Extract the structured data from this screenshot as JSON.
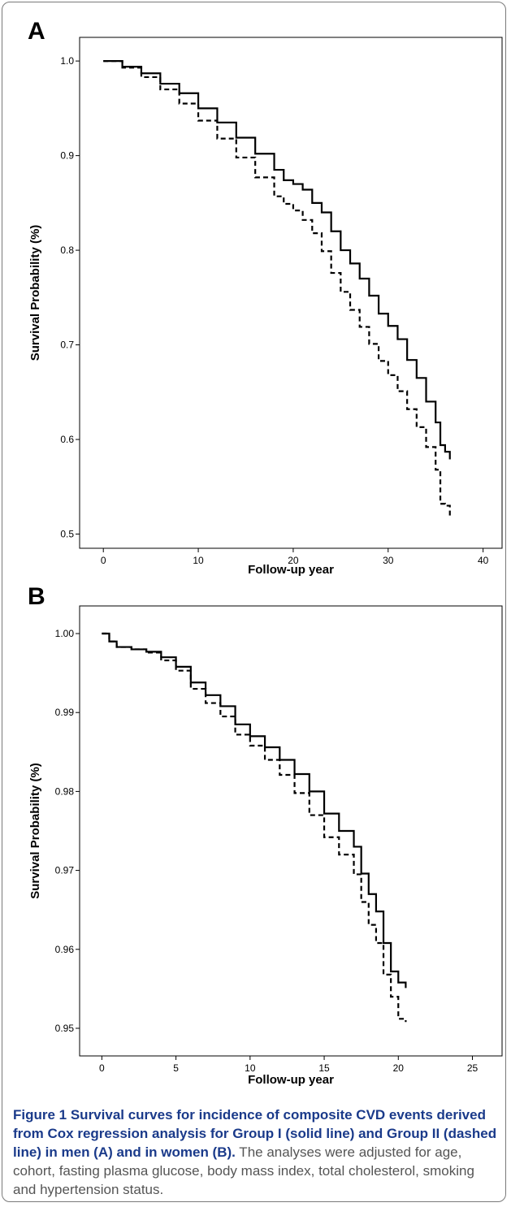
{
  "panels": [
    {
      "letter": "A",
      "chart_data": {
        "type": "line",
        "title": "",
        "xlabel": "Follow-up year",
        "ylabel": "Survival Probability (%)",
        "xlim": [
          -2.5,
          42
        ],
        "ylim": [
          0.485,
          1.025
        ],
        "xticks": [
          0,
          10,
          20,
          30,
          40
        ],
        "yticks": [
          0.5,
          0.6,
          0.7,
          0.8,
          0.9,
          1.0
        ],
        "ytick_labels": [
          "0.5",
          "0.6",
          "0.7",
          "0.8",
          "0.9",
          "1.0"
        ],
        "grid": false,
        "legend": "none",
        "series": [
          {
            "style": "solid",
            "x": [
              0,
              2,
              4,
              6,
              8,
              10,
              12,
              14,
              16,
              18,
              19,
              20,
              21,
              22,
              23,
              24,
              25,
              26,
              27,
              28,
              29,
              30,
              31,
              32,
              33,
              34,
              35,
              35.5,
              36,
              36.5
            ],
            "y": [
              1.0,
              0.994,
              0.987,
              0.976,
              0.966,
              0.95,
              0.935,
              0.919,
              0.902,
              0.885,
              0.874,
              0.87,
              0.864,
              0.85,
              0.84,
              0.82,
              0.8,
              0.786,
              0.77,
              0.752,
              0.733,
              0.72,
              0.706,
              0.684,
              0.665,
              0.64,
              0.618,
              0.594,
              0.587,
              0.579
            ]
          },
          {
            "style": "dashed",
            "x": [
              0,
              2,
              4,
              6,
              8,
              10,
              12,
              14,
              16,
              18,
              19,
              20,
              21,
              22,
              23,
              24,
              25,
              26,
              27,
              28,
              29,
              30,
              31,
              32,
              33,
              34,
              35,
              35.5,
              36,
              36.5
            ],
            "y": [
              1.0,
              0.993,
              0.983,
              0.97,
              0.955,
              0.937,
              0.918,
              0.898,
              0.877,
              0.857,
              0.849,
              0.842,
              0.832,
              0.818,
              0.799,
              0.776,
              0.756,
              0.737,
              0.719,
              0.701,
              0.683,
              0.668,
              0.651,
              0.632,
              0.613,
              0.592,
              0.568,
              0.532,
              0.53,
              0.519
            ]
          }
        ]
      }
    },
    {
      "letter": "B",
      "chart_data": {
        "type": "line",
        "title": "",
        "xlabel": "Follow-up year",
        "ylabel": "Survival Probability (%)",
        "xlim": [
          -1.5,
          27
        ],
        "ylim": [
          0.9465,
          1.0035
        ],
        "xticks": [
          0,
          5,
          10,
          15,
          20,
          25
        ],
        "yticks": [
          0.95,
          0.96,
          0.97,
          0.98,
          0.99,
          1.0
        ],
        "ytick_labels": [
          "0.95",
          "0.96",
          "0.97",
          "0.98",
          "0.99",
          "1.00"
        ],
        "grid": false,
        "legend": "none",
        "series": [
          {
            "style": "solid",
            "x": [
              0,
              0.5,
              1,
              2,
              3,
              4,
              5,
              6,
              7,
              8,
              9,
              10,
              11,
              12,
              13,
              14,
              15,
              16,
              17,
              17.5,
              18,
              18.5,
              19,
              19.5,
              20,
              20.5
            ],
            "y": [
              1.0,
              0.999,
              0.9983,
              0.998,
              0.9977,
              0.997,
              0.9958,
              0.9938,
              0.9922,
              0.9908,
              0.9885,
              0.987,
              0.9856,
              0.984,
              0.9822,
              0.98,
              0.9772,
              0.975,
              0.973,
              0.9696,
              0.967,
              0.9648,
              0.9608,
              0.9572,
              0.9558,
              0.9551
            ]
          },
          {
            "style": "dashed",
            "x": [
              0,
              0.5,
              1,
              2,
              3,
              4,
              5,
              6,
              7,
              8,
              9,
              10,
              11,
              12,
              13,
              14,
              15,
              16,
              17,
              17.5,
              18,
              18.5,
              19,
              19.5,
              20,
              20.5
            ],
            "y": [
              1.0,
              0.999,
              0.9983,
              0.998,
              0.9976,
              0.9966,
              0.9953,
              0.993,
              0.9912,
              0.9895,
              0.9872,
              0.9858,
              0.984,
              0.9821,
              0.9798,
              0.977,
              0.9742,
              0.972,
              0.9695,
              0.966,
              0.9631,
              0.9608,
              0.9568,
              0.954,
              0.9512,
              0.9508
            ]
          }
        ]
      }
    }
  ],
  "caption": {
    "title": "Figure 1 Survival curves for incidence of composite CVD events derived from Cox regression analysis for Group I (solid line) and Group II (dashed line) in men (A) and in women (B).",
    "body": " The analyses were adjusted for age, cohort, fasting plasma glucose, body mass index, total cholesterol, smoking and hypertension status."
  }
}
